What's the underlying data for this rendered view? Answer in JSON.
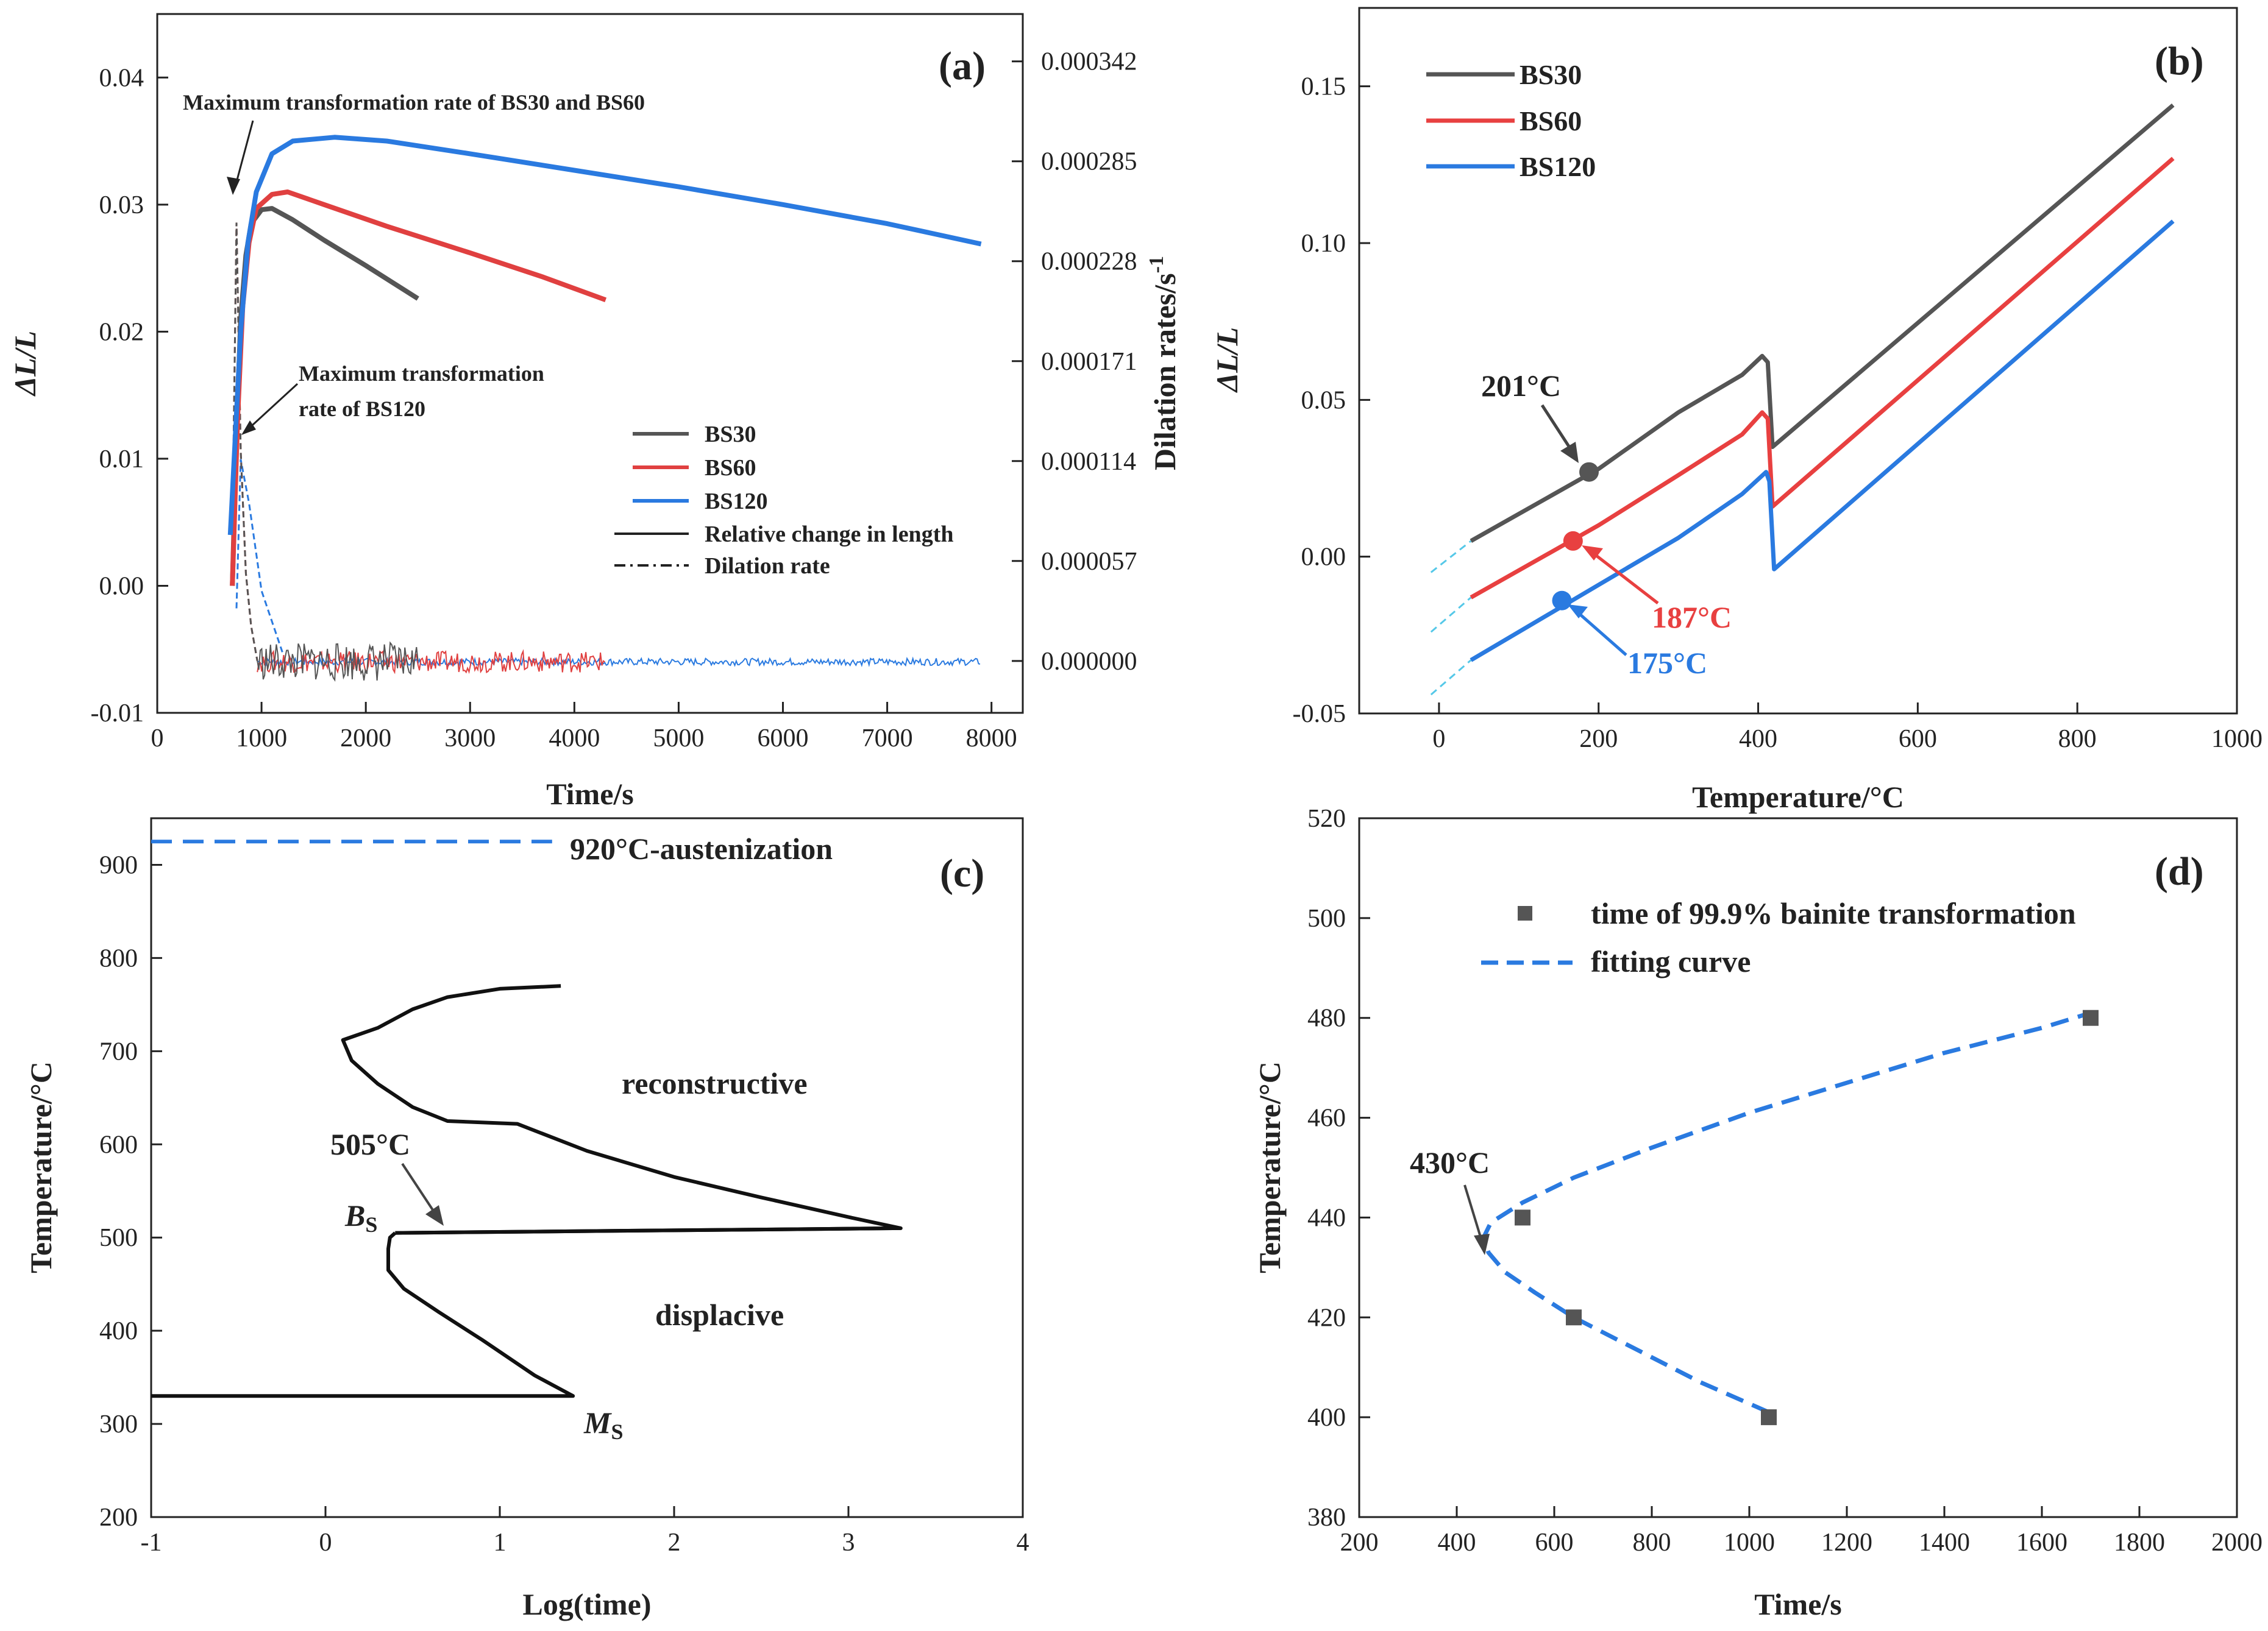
{
  "chart_data": [
    {
      "panel": "(a)",
      "type": "line",
      "xlabel": "Time/s",
      "ylabel": "ΔL/L",
      "ylabel2": "Dilation rates/s",
      "ylabel2_sup": "-1",
      "xlim": [
        0,
        8300
      ],
      "ylim": [
        -0.01,
        0.045
      ],
      "ylim2": [
        -2.96e-05,
        0.000369
      ],
      "xticks": [
        "0",
        "1000",
        "2000",
        "3000",
        "4000",
        "5000",
        "6000",
        "7000",
        "8000"
      ],
      "yticks": [
        "-0.01",
        "0.00",
        "0.01",
        "0.02",
        "0.03",
        "0.04"
      ],
      "yticks2": [
        "0.000000",
        "0.000057",
        "0.000114",
        "0.000171",
        "0.000228",
        "0.000285",
        "0.000342"
      ],
      "series": [
        {
          "name": "BS30",
          "color": "#555555",
          "length": [
            [
              720,
              0.0
            ],
            [
              760,
              0.012
            ],
            [
              800,
              0.021
            ],
            [
              850,
              0.026
            ],
            [
              900,
              0.0285
            ],
            [
              1000,
              0.0296
            ],
            [
              1100,
              0.0297
            ],
            [
              1300,
              0.0288
            ],
            [
              1600,
              0.0272
            ],
            [
              2000,
              0.0252
            ],
            [
              2500,
              0.0226
            ]
          ],
          "rate_end": 2500
        },
        {
          "name": "BS60",
          "color": "#e04040",
          "length": [
            [
              720,
              0.0
            ],
            [
              770,
              0.013
            ],
            [
              820,
              0.022
            ],
            [
              880,
              0.027
            ],
            [
              950,
              0.0297
            ],
            [
              1100,
              0.0308
            ],
            [
              1250,
              0.031
            ],
            [
              1600,
              0.03
            ],
            [
              2200,
              0.0283
            ],
            [
              3000,
              0.0262
            ],
            [
              3700,
              0.0243
            ],
            [
              4300,
              0.0225
            ]
          ],
          "rate_end": 4300
        },
        {
          "name": "BS120",
          "color": "#2a7ae0",
          "length": [
            [
              700,
              0.004
            ],
            [
              750,
              0.012
            ],
            [
              800,
              0.02
            ],
            [
              870,
              0.027
            ],
            [
              950,
              0.031
            ],
            [
              1100,
              0.034
            ],
            [
              1300,
              0.035
            ],
            [
              1700,
              0.0353
            ],
            [
              2200,
              0.035
            ],
            [
              3000,
              0.034
            ],
            [
              4000,
              0.0327
            ],
            [
              5000,
              0.0314
            ],
            [
              6000,
              0.03
            ],
            [
              7000,
              0.0285
            ],
            [
              7900,
              0.0269
            ]
          ],
          "rate_end": 7900
        }
      ],
      "legend": [
        "BS30",
        "BS60",
        "BS120",
        "Relative change in length",
        "Dilation rate"
      ],
      "annotations": [
        "Maximum transformation rate of BS30 and BS60",
        "Maximum transformation",
        "rate of BS120"
      ]
    },
    {
      "panel": "(b)",
      "type": "line",
      "xlabel": "Temperature/°C",
      "ylabel": "ΔL/L",
      "xlim": [
        -100,
        1000
      ],
      "ylim": [
        -0.05,
        0.175
      ],
      "xticks": [
        "0",
        "200",
        "400",
        "600",
        "800",
        "1000"
      ],
      "yticks": [
        "-0.05",
        "0.00",
        "0.05",
        "0.10",
        "0.15"
      ],
      "series": [
        {
          "name": "BS30",
          "color": "#555555",
          "points": [
            [
              40,
              0.005
            ],
            [
              200,
              0.028
            ],
            [
              300,
              0.046
            ],
            [
              380,
              0.058
            ],
            [
              405,
              0.064
            ],
            [
              412,
              0.062
            ],
            [
              418,
              0.035
            ],
            [
              920,
              0.144
            ]
          ],
          "ext": [
            [
              -10,
              -0.005
            ],
            [
              40,
              0.005
            ]
          ],
          "marker": [
            188,
            0.027
          ],
          "marker_label": "201°C"
        },
        {
          "name": "BS60",
          "color": "#e84040",
          "points": [
            [
              40,
              -0.013
            ],
            [
              200,
              0.01
            ],
            [
              300,
              0.026
            ],
            [
              380,
              0.039
            ],
            [
              405,
              0.046
            ],
            [
              412,
              0.044
            ],
            [
              418,
              0.016
            ],
            [
              920,
              0.127
            ]
          ],
          "ext": [
            [
              -10,
              -0.024
            ],
            [
              40,
              -0.013
            ]
          ],
          "marker": [
            168,
            0.005
          ],
          "marker_label": "187°C"
        },
        {
          "name": "BS120",
          "color": "#2a7ae0",
          "points": [
            [
              40,
              -0.033
            ],
            [
              200,
              -0.009
            ],
            [
              300,
              0.006
            ],
            [
              380,
              0.02
            ],
            [
              410,
              0.027
            ],
            [
              414,
              0.024
            ],
            [
              420,
              -0.004
            ],
            [
              920,
              0.107
            ]
          ],
          "ext": [
            [
              -10,
              -0.044
            ],
            [
              40,
              -0.033
            ]
          ],
          "marker": [
            154,
            -0.014
          ],
          "marker_label": "175°C"
        }
      ],
      "legend": [
        "BS30",
        "BS60",
        "BS120"
      ]
    },
    {
      "panel": "(c)",
      "type": "line",
      "xlabel": "Log(time)",
      "ylabel": "Temperature/°C",
      "xlim": [
        -1,
        4
      ],
      "ylim": [
        200,
        950
      ],
      "xticks": [
        "-1",
        "0",
        "1",
        "2",
        "3",
        "4"
      ],
      "yticks": [
        "200",
        "300",
        "400",
        "500",
        "600",
        "700",
        "800",
        "900"
      ],
      "austenization": {
        "y": 925,
        "x": [
          -1,
          1.3
        ],
        "label": "920°C-austenization"
      },
      "upper_c": [
        [
          1.35,
          770
        ],
        [
          1.0,
          767
        ],
        [
          0.7,
          758
        ],
        [
          0.5,
          745
        ],
        [
          0.3,
          725
        ],
        [
          0.1,
          712
        ],
        [
          0.15,
          690
        ],
        [
          0.3,
          665
        ],
        [
          0.5,
          640
        ],
        [
          0.7,
          625
        ],
        [
          1.1,
          622
        ],
        [
          1.5,
          593
        ],
        [
          2.0,
          565
        ],
        [
          2.5,
          543
        ],
        [
          3.0,
          522
        ],
        [
          3.3,
          510
        ],
        [
          0.4,
          505
        ]
      ],
      "lower_c": [
        [
          0.4,
          505
        ],
        [
          0.37,
          500
        ],
        [
          0.36,
          488
        ],
        [
          0.36,
          465
        ],
        [
          0.45,
          445
        ],
        [
          0.65,
          420
        ],
        [
          0.9,
          390
        ],
        [
          1.2,
          352
        ],
        [
          1.42,
          330
        ],
        [
          -1.0,
          330
        ]
      ],
      "bs_line": [
        [
          0.4,
          505
        ],
        [
          3.3,
          510
        ]
      ],
      "labels": {
        "reconstructive": "reconstructive",
        "displacive": "displacive",
        "bs_temp": "505°C",
        "bs": "B",
        "bs_sub": "S",
        "ms": "M",
        "ms_sub": "S"
      }
    },
    {
      "panel": "(d)",
      "type": "scatter",
      "xlabel": "Time/s",
      "ylabel": "Temperature/°C",
      "xlim": [
        200,
        2000
      ],
      "ylim": [
        380,
        520
      ],
      "xticks": [
        "200",
        "400",
        "600",
        "800",
        "1000",
        "1200",
        "1400",
        "1600",
        "1800",
        "2000"
      ],
      "yticks": [
        "380",
        "400",
        "420",
        "440",
        "460",
        "480",
        "500",
        "520"
      ],
      "points": [
        [
          535,
          440
        ],
        [
          640,
          420
        ],
        [
          1040,
          400
        ],
        [
          1700,
          480
        ]
      ],
      "fit_curve": [
        [
          1040,
          401
        ],
        [
          900,
          407
        ],
        [
          760,
          414
        ],
        [
          640,
          420
        ],
        [
          560,
          425
        ],
        [
          500,
          429
        ],
        [
          465,
          433
        ],
        [
          455,
          436
        ],
        [
          470,
          439
        ],
        [
          535,
          443
        ],
        [
          640,
          448
        ],
        [
          800,
          454
        ],
        [
          1000,
          461
        ],
        [
          1200,
          467
        ],
        [
          1400,
          473
        ],
        [
          1600,
          478
        ],
        [
          1700,
          481
        ]
      ],
      "legend": [
        "time of 99.9% bainite transformation",
        "fitting curve"
      ],
      "annotation": "430°C"
    }
  ]
}
